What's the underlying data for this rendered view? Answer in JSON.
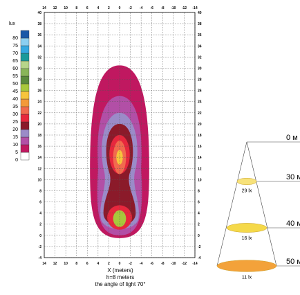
{
  "chart_data": [
    {
      "type": "heatmap",
      "title": "",
      "xlabel": "X (meters)",
      "ylabel": "",
      "subtitle_lines": [
        "h=8 meters",
        "the angle of light 70°"
      ],
      "xlim": [
        14,
        -14
      ],
      "ylim": [
        -4,
        40
      ],
      "x_ticks": [
        14,
        12,
        10,
        8,
        6,
        4,
        2,
        0,
        -2,
        -4,
        -6,
        -8,
        -10,
        -12,
        -14
      ],
      "y_ticks": [
        40,
        38,
        36,
        34,
        32,
        30,
        28,
        26,
        24,
        22,
        20,
        18,
        16,
        14,
        12,
        10,
        8,
        6,
        4,
        2,
        0,
        -2,
        -4
      ],
      "grid": true,
      "legend": {
        "title": "lux",
        "position": "left",
        "levels": [
          0,
          5,
          10,
          15,
          20,
          25,
          30,
          35,
          40,
          45,
          50,
          55,
          60,
          65,
          70,
          75,
          80
        ],
        "colors": [
          "#ffffff",
          "#c01860",
          "#b24fa6",
          "#9b8bc8",
          "#8b1a2a",
          "#e7273d",
          "#f16a4e",
          "#f39a3a",
          "#f7c43c",
          "#a8c83c",
          "#5a8a3c",
          "#89b559",
          "#b7d58a",
          "#1a9a9a",
          "#36a9e1",
          "#8ccff1",
          "#1958a7"
        ]
      },
      "contours": [
        {
          "level": 5,
          "color": "#c01860",
          "extent": "x -5.5…5.5, y -0.5…30.5"
        },
        {
          "level": 10,
          "color": "#b24fa6",
          "extent": "x -4.5…4.5, y 0…25"
        },
        {
          "level": 15,
          "color": "#9b8bc8",
          "extent": "x -4…4, y 0…22"
        },
        {
          "level": 20,
          "color": "#8b1a2a",
          "extent": "x -3…3, y 0.5…20"
        },
        {
          "level": 25,
          "color": "#e7273d",
          "extent": "x -2…2, y 1…18"
        },
        {
          "level": 30,
          "color": "#f16a4e",
          "extent": "x -1.2…1.2, y 11…17"
        },
        {
          "level": 40,
          "color": "#f7c43c",
          "extent": "x -0.6…0.6, y 12.5…15"
        },
        {
          "level": 45,
          "color": "#a8c83c",
          "extent": "x -1.2…1.2, y 1.5…4.5"
        }
      ]
    },
    {
      "type": "diagram",
      "title": "",
      "description_levels": [
        {
          "distance": "0 м",
          "lux": ""
        },
        {
          "distance": "30 м",
          "lux": "29 lx"
        },
        {
          "distance": "40 м",
          "lux": "16 lx"
        },
        {
          "distance": "50 м",
          "lux": "11 lx"
        }
      ],
      "ellipse_colors": [
        "#f7e27a",
        "#f5d94a",
        "#f3a23a"
      ]
    }
  ]
}
